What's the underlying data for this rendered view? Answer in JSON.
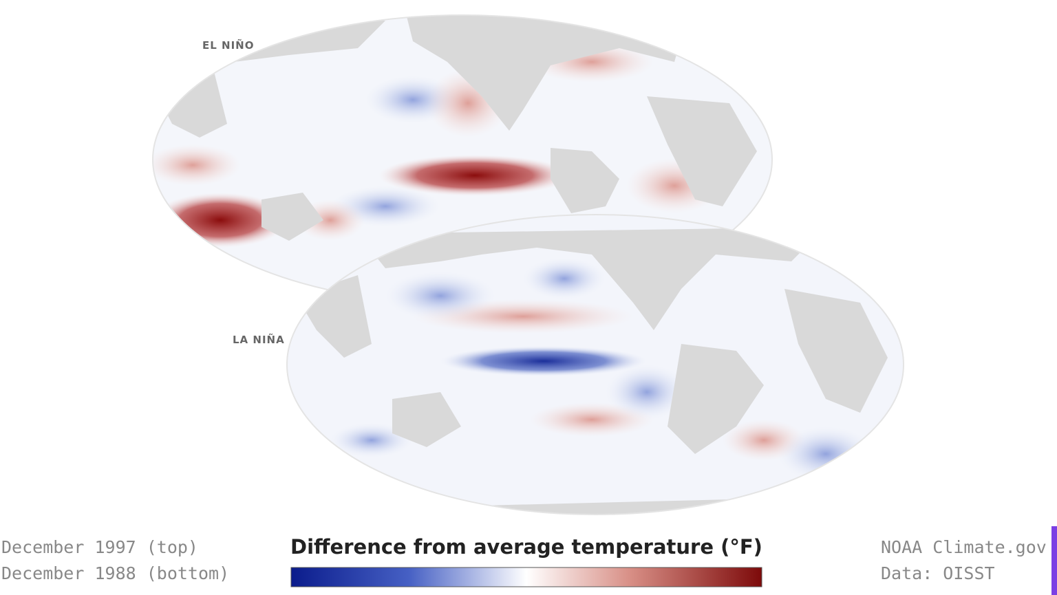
{
  "maps": [
    {
      "label": "EL NIÑO"
    },
    {
      "label": "LA NIÑA"
    }
  ],
  "footer": {
    "dates": [
      "December 1997 (top)",
      "December 1988 (bottom)"
    ],
    "legend_title": "Difference from average temperature (°F)",
    "credits": [
      "NOAA Climate.gov",
      "Data: OISST"
    ]
  }
}
